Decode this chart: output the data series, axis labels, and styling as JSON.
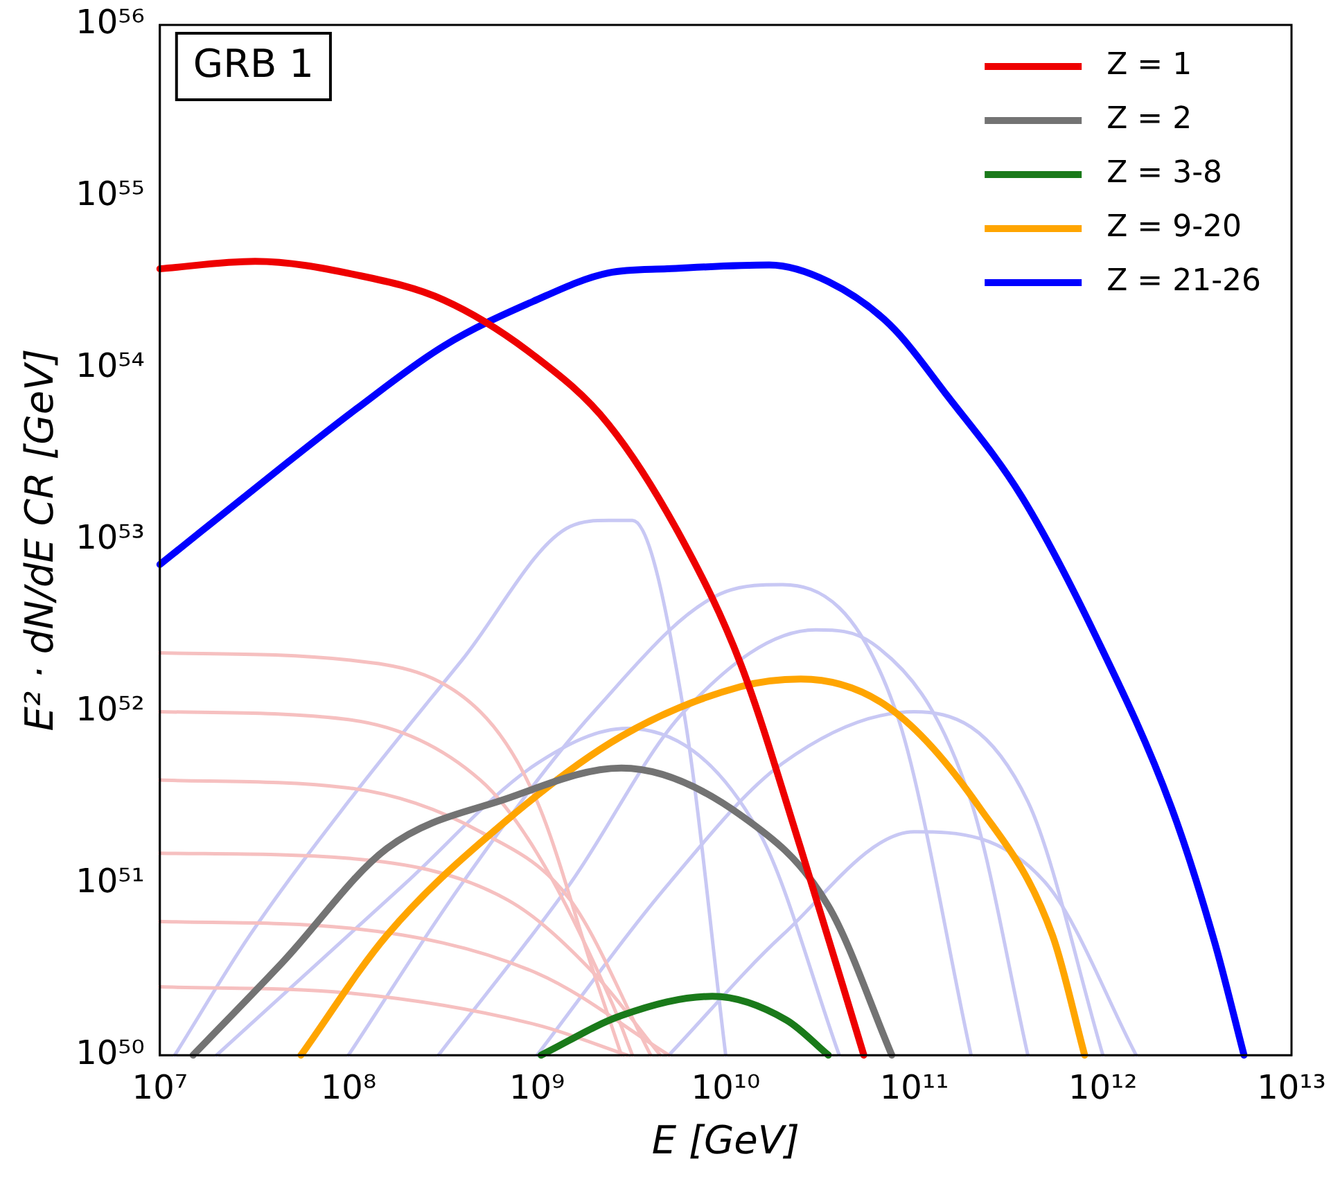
{
  "chart_data": {
    "type": "line",
    "xlabel": "E [GeV]",
    "ylabel": "E² · dN/dE CR [GeV]",
    "annotations": [
      "GRB 1"
    ],
    "log": "xy",
    "legend": "top right",
    "grid": false,
    "line_style": "solid",
    "marker": "none",
    "xlim": [
      10000000.0,
      10000000000000.0
    ],
    "xticks": [
      {
        "value": 10000000.0,
        "label": "10⁷"
      },
      {
        "value": 100000000.0,
        "label": "10⁸"
      },
      {
        "value": 1000000000.0,
        "label": "10⁹"
      },
      {
        "value": 10000000000.0,
        "label": "10¹⁰"
      },
      {
        "value": 100000000000.0,
        "label": "10¹¹"
      },
      {
        "value": 1000000000000.0,
        "label": "10¹²"
      },
      {
        "value": 10000000000000.0,
        "label": "10¹³"
      }
    ],
    "ylim": [
      1e+50,
      1e+56
    ],
    "yticks": [
      {
        "value": 1e+50,
        "label": "10⁵⁰"
      },
      {
        "value": 1e+51,
        "label": "10⁵¹"
      },
      {
        "value": 1e+52,
        "label": "10⁵²"
      },
      {
        "value": 1e+53,
        "label": "10⁵³"
      },
      {
        "value": 1e+54,
        "label": "10⁵⁴"
      },
      {
        "value": 1e+55,
        "label": "10⁵⁵"
      },
      {
        "value": 1e+56,
        "label": "10⁵⁶"
      }
    ],
    "series": [
      {
        "color": "#f6c0c0",
        "x": [
          10000000.0,
          100000000.0,
          500000000.0,
          1000000000.0,
          2000000000.0,
          2800000000.0
        ],
        "values": [
          2.2e+52,
          2e+52,
          1e+52,
          3e+51,
          3e+50,
          1e+50
        ]
      },
      {
        "color": "#f6c0c0",
        "x": [
          10000000.0,
          100000000.0,
          500000000.0,
          1000000000.0,
          2500000000.0,
          3200000000.0
        ],
        "values": [
          1e+52,
          9e+51,
          4e+51,
          1.5e+51,
          2e+50,
          1e+50
        ]
      },
      {
        "color": "#f6c0c0",
        "x": [
          10000000.0,
          100000000.0,
          500000000.0,
          1500000000.0,
          4000000000.0
        ],
        "values": [
          4e+51,
          3.6e+51,
          2e+51,
          8e+50,
          1e+50
        ]
      },
      {
        "color": "#f6c0c0",
        "x": [
          10000000.0,
          100000000.0,
          700000000.0,
          2000000000.0,
          4500000000.0
        ],
        "values": [
          1.5e+51,
          1.4e+51,
          8e+50,
          3e+50,
          1e+50
        ]
      },
      {
        "color": "#f6c0c0",
        "x": [
          10000000.0,
          100000000.0,
          1000000000.0,
          5000000000.0
        ],
        "values": [
          6e+50,
          5.5e+50,
          3e+50,
          1e+50
        ]
      },
      {
        "color": "#f6c0c0",
        "x": [
          10000000.0,
          100000000.0,
          1000000000.0,
          3000000000.0
        ],
        "values": [
          2.5e+50,
          2.3e+50,
          1.5e+50,
          1e+50
        ]
      },
      {
        "color": "#c8c8f4",
        "x": [
          12000000.0,
          30000000.0,
          100000000.0,
          400000000.0,
          1500000000.0,
          2400000000.0,
          3200000000.0,
          6000000000.0,
          10000000000.0
        ],
        "values": [
          1e+50,
          5e+50,
          3e+51,
          2e+52,
          1.2e+53,
          1.3e+53,
          1.3e+53,
          1e+52,
          1e+50
        ]
      },
      {
        "color": "#c8c8f4",
        "x": [
          100000000.0,
          400000000.0,
          2000000000.0,
          10000000000.0,
          20000000000.0,
          80000000000.0,
          200000000000.0
        ],
        "values": [
          1e+50,
          1e+51,
          1e+52,
          5e+52,
          5.5e+52,
          1e+52,
          1e+50
        ]
      },
      {
        "color": "#c8c8f4",
        "x": [
          300000000.0,
          1500000000.0,
          6000000000.0,
          30000000000.0,
          60000000000.0,
          200000000000.0,
          400000000000.0
        ],
        "values": [
          1e+50,
          1e+51,
          1e+52,
          3e+52,
          2.5e+52,
          3e+51,
          1e+50
        ]
      },
      {
        "color": "#c8c8f4",
        "x": [
          1000000000.0,
          5000000000.0,
          20000000000.0,
          100000000000.0,
          400000000000.0,
          1000000000000.0
        ],
        "values": [
          1e+50,
          1e+51,
          5e+51,
          1e+52,
          3e+51,
          1e+50
        ]
      },
      {
        "color": "#c8c8f4",
        "x": [
          20000000.0,
          200000000.0,
          1000000000.0,
          3000000000.0,
          15000000000.0,
          40000000000.0
        ],
        "values": [
          1e+50,
          1e+51,
          5e+51,
          8e+51,
          2e+51,
          1e+50
        ]
      },
      {
        "color": "#c8c8f4",
        "x": [
          5000000000.0,
          20000000000.0,
          100000000000.0,
          500000000000.0,
          1500000000000.0
        ],
        "values": [
          1e+50,
          5e+50,
          2e+51,
          1e+51,
          1e+50
        ]
      },
      {
        "name": "Z = 1",
        "color": "#ee0000",
        "x": [
          10000000.0,
          32000000.0,
          110000000.0,
          320000000.0,
          950000000.0,
          2400000000.0,
          5900000000.0,
          12000000000.0,
          25000000000.0,
          54000000000.0
        ],
        "values": [
          3.8e+54,
          4.2e+54,
          3.5e+54,
          2.5e+54,
          1.2e+54,
          4.7e+53,
          1e+53,
          1.9e+52,
          1.6e+51,
          1e+50
        ]
      },
      {
        "name": "Z = 2",
        "color": "#737373",
        "x": [
          15000000.0,
          45000000.0,
          160000000.0,
          680000000.0,
          2800000000.0,
          12000000000.0,
          35000000000.0,
          76000000000.0
        ],
        "values": [
          1e+50,
          3.5e+50,
          1.6e+51,
          3.1e+51,
          4.7e+51,
          2.5e+51,
          7.4e+50,
          1e+50
        ]
      },
      {
        "name": "Z = 3-8",
        "color": "#1a7a1a",
        "x": [
          1050000000.0,
          2800000000.0,
          8500000000.0,
          21000000000.0,
          35000000000.0
        ],
        "values": [
          1e+50,
          1.7e+50,
          2.2e+50,
          1.6e+50,
          1e+50
        ]
      },
      {
        "name": "Z = 9-20",
        "color": "#ffa500",
        "x": [
          56000000.0,
          160000000.0,
          680000000.0,
          2800000000.0,
          12000000000.0,
          25000000000.0,
          74000000000.0,
          220000000000.0,
          540000000000.0,
          800000000000.0
        ],
        "values": [
          1e+50,
          5e+50,
          2.3e+51,
          7.2e+51,
          1.4e+52,
          1.55e+52,
          1.05e+52,
          2.8e+51,
          5e+50,
          1e+50
        ]
      },
      {
        "name": "Z = 21-26",
        "color": "#0000ff",
        "x": [
          10000000.0,
          45000000.0,
          110000000.0,
          320000000.0,
          950000000.0,
          2400000000.0,
          4900000000.0,
          17000000000.0,
          35000000000.0,
          74000000000.0,
          150000000000.0,
          370000000000.0,
          910000000000.0,
          2300000000000.0,
          3900000000000.0,
          5600000000000.0
        ],
        "values": [
          7.2e+52,
          2.7e+53,
          5.8e+53,
          1.35e+54,
          2.45e+54,
          3.6e+54,
          3.8e+54,
          4e+54,
          3.2e+54,
          1.8e+54,
          6.9e+53,
          1.8e+53,
          2.8e+52,
          2.8e+51,
          4.6e+50,
          1e+50
        ]
      }
    ]
  }
}
